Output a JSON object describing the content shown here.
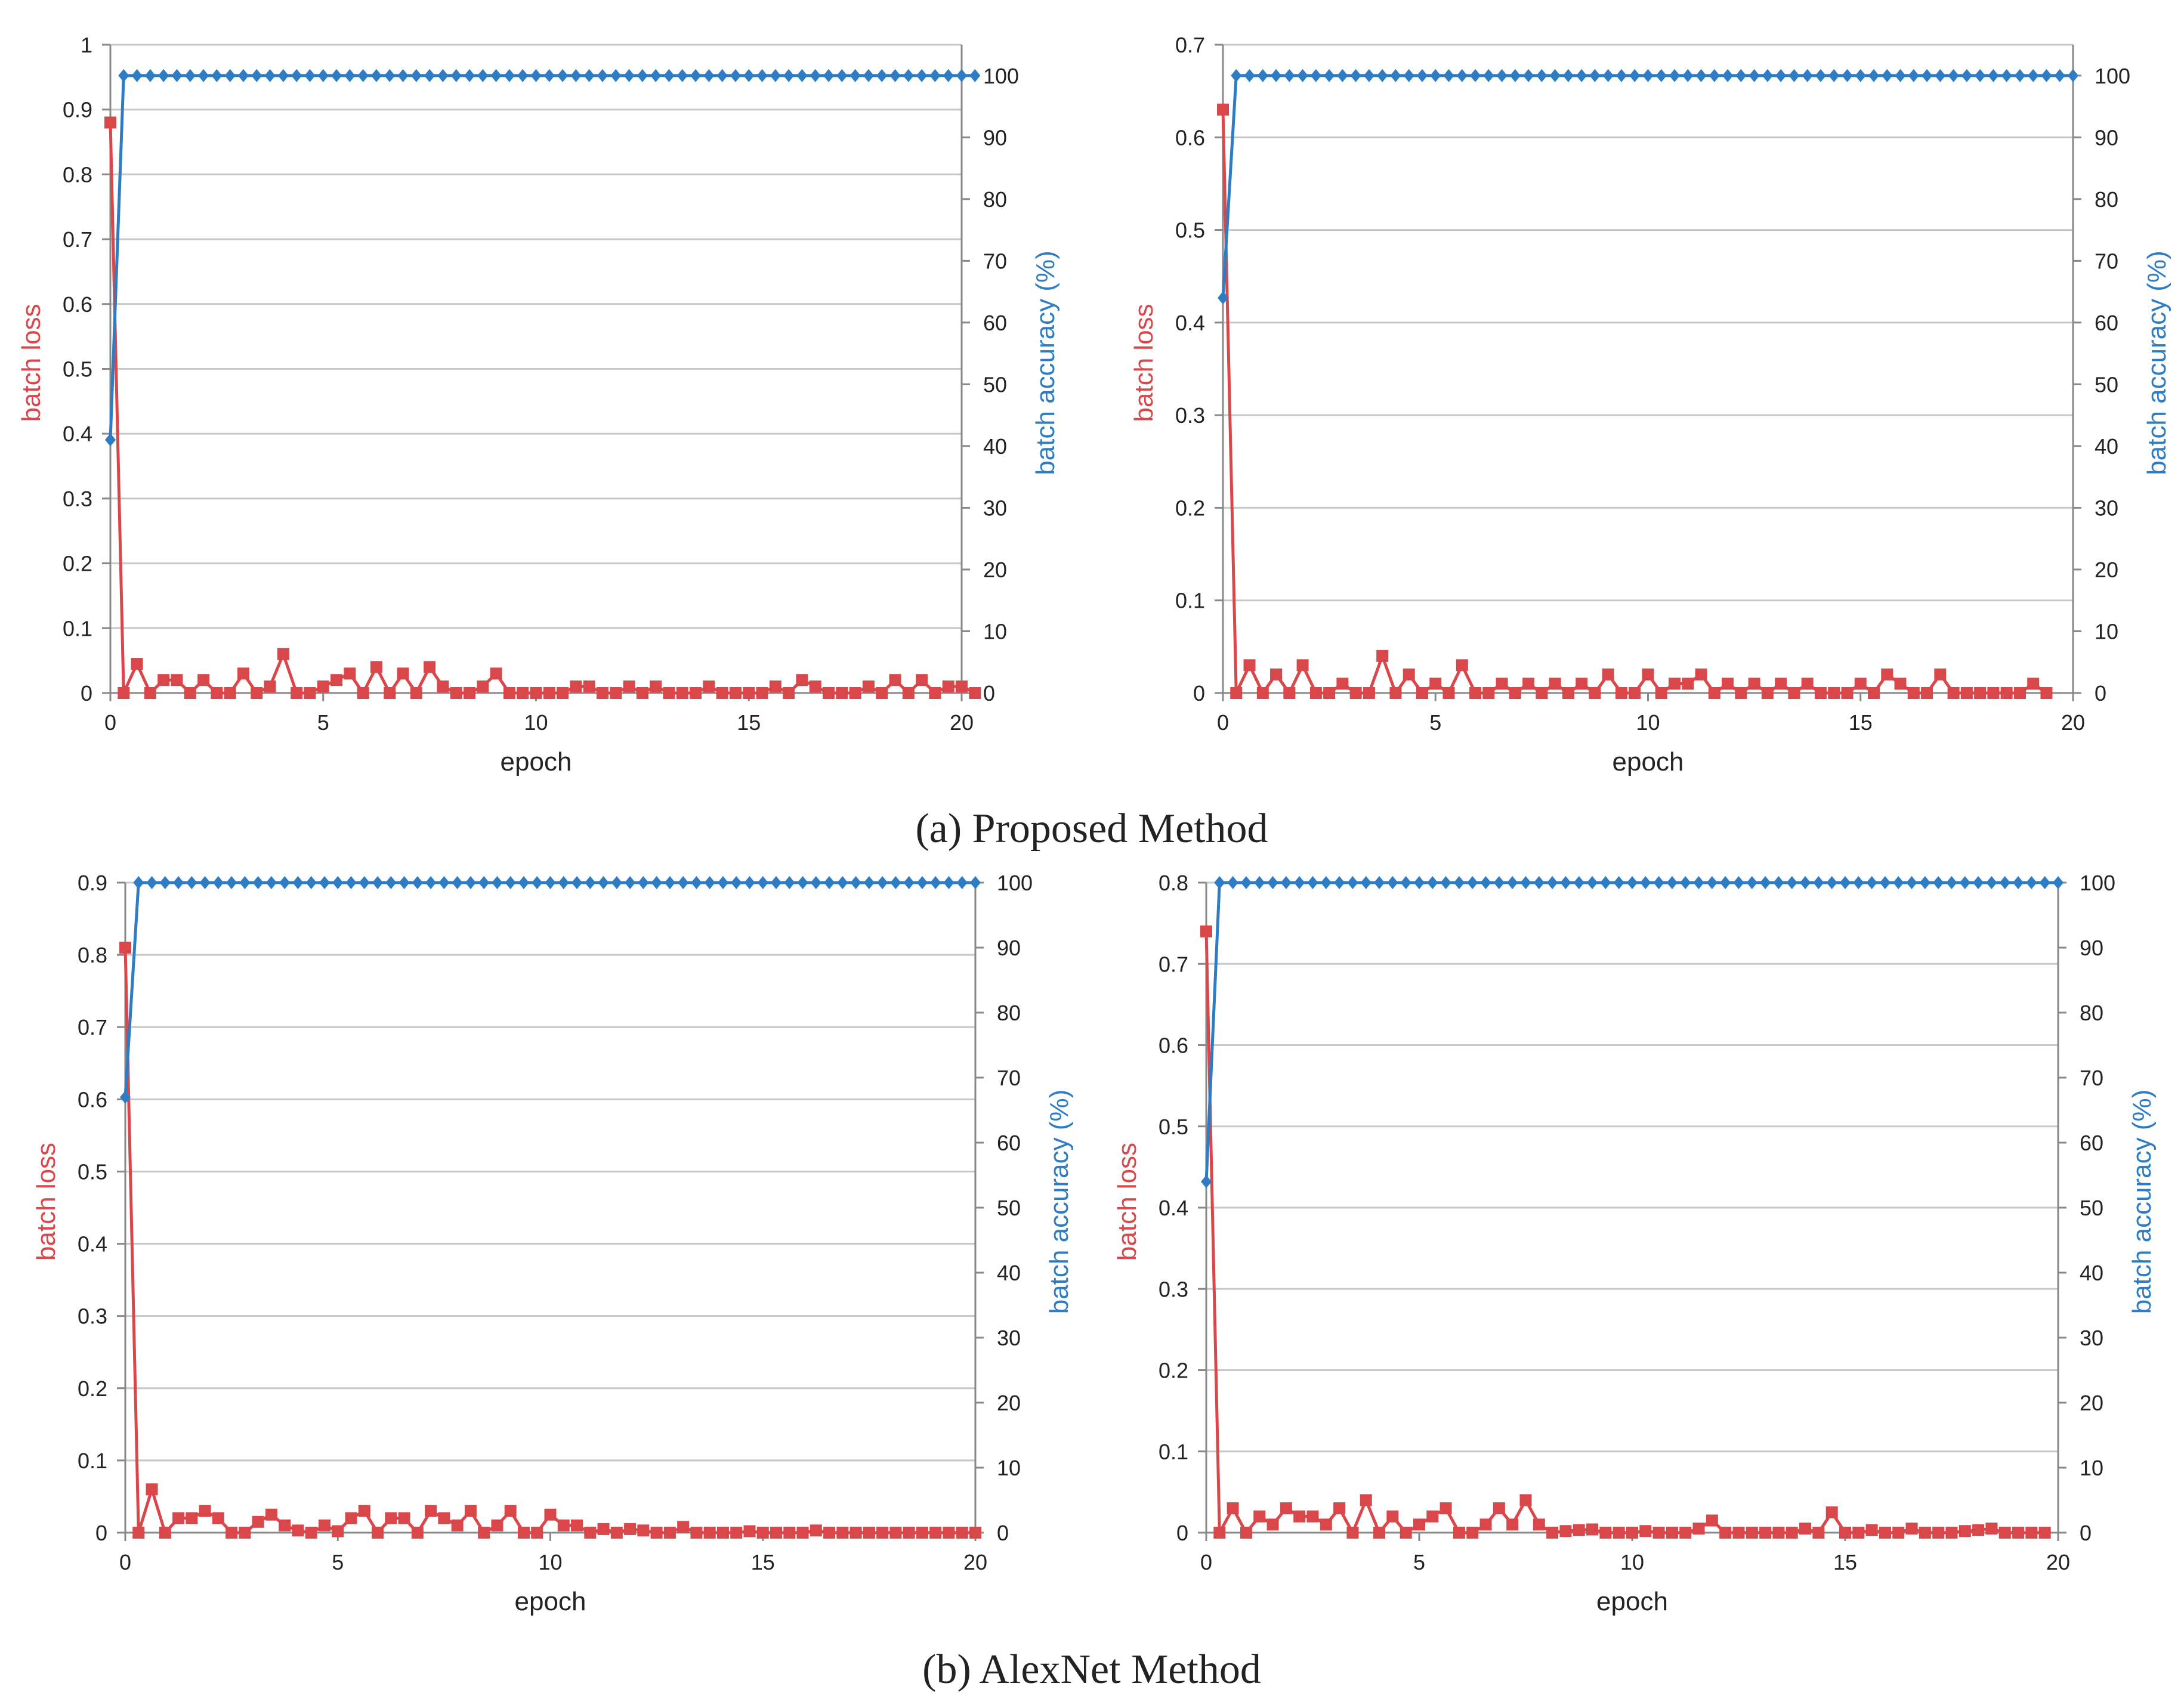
{
  "captions": [
    "(a) Proposed Method",
    "(b) AlexNet Method"
  ],
  "colors": {
    "loss": "#d9474a",
    "accuracy": "#2e7cc4",
    "grid": "#c8c8c8",
    "axis": "#888888",
    "text": "#222222"
  },
  "chart_data": [
    {
      "type": "line",
      "panel": "a-left",
      "xlabel": "epoch",
      "ylabel_left": "batch loss",
      "ylabel_right": "batch accuracy (%)",
      "xlim": [
        0,
        20
      ],
      "xticks": [
        0,
        5,
        10,
        15,
        20
      ],
      "ylim_left": [
        0,
        1
      ],
      "yticks_left": [
        0,
        0.1,
        0.2,
        0.3,
        0.4,
        0.5,
        0.6,
        0.7,
        0.8,
        0.9,
        1
      ],
      "ylim_right": [
        0,
        105
      ],
      "yticks_right": [
        0,
        10,
        20,
        30,
        40,
        50,
        60,
        70,
        80,
        90,
        100
      ],
      "series": [
        {
          "name": "batch loss",
          "axis": "left",
          "marker": "square",
          "x_step": 0.3125,
          "x_start": 0,
          "values": [
            0.88,
            0,
            0.045,
            0,
            0.02,
            0.02,
            0,
            0.02,
            0,
            0,
            0.03,
            0,
            0.01,
            0.06,
            0,
            0,
            0.01,
            0.02,
            0.03,
            0,
            0.04,
            0,
            0.03,
            0,
            0.04,
            0.01,
            0,
            0,
            0.01,
            0.03,
            0,
            0,
            0,
            0,
            0,
            0.01,
            0.01,
            0,
            0,
            0.01,
            0,
            0.01,
            0,
            0,
            0,
            0.01,
            0,
            0,
            0,
            0,
            0.01,
            0,
            0.02,
            0.01,
            0,
            0,
            0,
            0.01,
            0,
            0.02,
            0,
            0.02,
            0,
            0.01,
            0.01,
            0
          ]
        },
        {
          "name": "batch accuracy (%)",
          "axis": "right",
          "marker": "diamond",
          "x_step": 0.3125,
          "x_start": 0,
          "values": [
            41,
            100,
            100,
            100,
            100,
            100,
            100,
            100,
            100,
            100,
            100,
            100,
            100,
            100,
            100,
            100,
            100,
            100,
            100,
            100,
            100,
            100,
            100,
            100,
            100,
            100,
            100,
            100,
            100,
            100,
            100,
            100,
            100,
            100,
            100,
            100,
            100,
            100,
            100,
            100,
            100,
            100,
            100,
            100,
            100,
            100,
            100,
            100,
            100,
            100,
            100,
            100,
            100,
            100,
            100,
            100,
            100,
            100,
            100,
            100,
            100,
            100,
            100,
            100,
            100,
            100
          ]
        }
      ]
    },
    {
      "type": "line",
      "panel": "a-right",
      "xlabel": "epoch",
      "ylabel_left": "batch loss",
      "ylabel_right": "batch accuracy (%)",
      "xlim": [
        0,
        20
      ],
      "xticks": [
        0,
        5,
        10,
        15,
        20
      ],
      "ylim_left": [
        0,
        0.7
      ],
      "yticks_left": [
        0,
        0.1,
        0.2,
        0.3,
        0.4,
        0.5,
        0.6,
        0.7
      ],
      "ylim_right": [
        0,
        105
      ],
      "yticks_right": [
        0,
        10,
        20,
        30,
        40,
        50,
        60,
        70,
        80,
        90,
        100
      ],
      "series": [
        {
          "name": "batch loss",
          "axis": "left",
          "marker": "square",
          "x_step": 0.3125,
          "x_start": 0,
          "values": [
            0.63,
            0,
            0.03,
            0,
            0.02,
            0,
            0.03,
            0,
            0,
            0.01,
            0,
            0,
            0.04,
            0,
            0.02,
            0,
            0.01,
            0,
            0.03,
            0,
            0,
            0.01,
            0,
            0.01,
            0,
            0.01,
            0,
            0.01,
            0,
            0.02,
            0,
            0,
            0.02,
            0,
            0.01,
            0.01,
            0.02,
            0,
            0.01,
            0,
            0.01,
            0,
            0.01,
            0,
            0.01,
            0,
            0,
            0,
            0.01,
            0,
            0.02,
            0.01,
            0,
            0,
            0.02,
            0,
            0,
            0,
            0,
            0,
            0,
            0.01,
            0
          ]
        },
        {
          "name": "batch accuracy (%)",
          "axis": "right",
          "marker": "diamond",
          "x_step": 0.3125,
          "x_start": 0,
          "values": [
            64,
            100,
            100,
            100,
            100,
            100,
            100,
            100,
            100,
            100,
            100,
            100,
            100,
            100,
            100,
            100,
            100,
            100,
            100,
            100,
            100,
            100,
            100,
            100,
            100,
            100,
            100,
            100,
            100,
            100,
            100,
            100,
            100,
            100,
            100,
            100,
            100,
            100,
            100,
            100,
            100,
            100,
            100,
            100,
            100,
            100,
            100,
            100,
            100,
            100,
            100,
            100,
            100,
            100,
            100,
            100,
            100,
            100,
            100,
            100,
            100,
            100,
            100,
            100,
            100
          ]
        }
      ]
    },
    {
      "type": "line",
      "panel": "b-left",
      "xlabel": "epoch",
      "ylabel_left": "batch loss",
      "ylabel_right": "batch accuracy (%)",
      "xlim": [
        0,
        20
      ],
      "xticks": [
        0,
        5,
        10,
        15,
        20
      ],
      "ylim_left": [
        0,
        0.9
      ],
      "yticks_left": [
        0,
        0.1,
        0.2,
        0.3,
        0.4,
        0.5,
        0.6,
        0.7,
        0.8,
        0.9
      ],
      "ylim_right": [
        0,
        100
      ],
      "yticks_right": [
        0,
        10,
        20,
        30,
        40,
        50,
        60,
        70,
        80,
        90,
        100
      ],
      "series": [
        {
          "name": "batch loss",
          "axis": "left",
          "marker": "square",
          "x_step": 0.3125,
          "x_start": 0,
          "values": [
            0.81,
            0,
            0.06,
            0,
            0.02,
            0.02,
            0.03,
            0.02,
            0,
            0,
            0.015,
            0.025,
            0.01,
            0.003,
            0,
            0.01,
            0.002,
            0.02,
            0.03,
            0,
            0.02,
            0.02,
            0,
            0.03,
            0.02,
            0.01,
            0.03,
            0,
            0.01,
            0.03,
            0,
            0,
            0.025,
            0.01,
            0.01,
            0,
            0.005,
            0,
            0.005,
            0.003,
            0,
            0,
            0.008,
            0,
            0,
            0,
            0,
            0.002,
            0,
            0,
            0,
            0,
            0.003,
            0,
            0,
            0,
            0,
            0,
            0,
            0,
            0,
            0,
            0,
            0,
            0
          ]
        },
        {
          "name": "batch accuracy (%)",
          "axis": "right",
          "marker": "diamond",
          "x_step": 0.3125,
          "x_start": 0,
          "values": [
            67,
            100,
            100,
            100,
            100,
            100,
            100,
            100,
            100,
            100,
            100,
            100,
            100,
            100,
            100,
            100,
            100,
            100,
            100,
            100,
            100,
            100,
            100,
            100,
            100,
            100,
            100,
            100,
            100,
            100,
            100,
            100,
            100,
            100,
            100,
            100,
            100,
            100,
            100,
            100,
            100,
            100,
            100,
            100,
            100,
            100,
            100,
            100,
            100,
            100,
            100,
            100,
            100,
            100,
            100,
            100,
            100,
            100,
            100,
            100,
            100,
            100,
            100,
            100,
            100
          ]
        }
      ]
    },
    {
      "type": "line",
      "panel": "b-right",
      "xlabel": "epoch",
      "ylabel_left": "batch loss",
      "ylabel_right": "batch accuracy (%)",
      "xlim": [
        0,
        20
      ],
      "xticks": [
        0,
        5,
        10,
        15,
        20
      ],
      "ylim_left": [
        0,
        0.8
      ],
      "yticks_left": [
        0,
        0.1,
        0.2,
        0.3,
        0.4,
        0.5,
        0.6,
        0.7,
        0.8
      ],
      "ylim_right": [
        0,
        100
      ],
      "yticks_right": [
        0,
        10,
        20,
        30,
        40,
        50,
        60,
        70,
        80,
        90,
        100
      ],
      "series": [
        {
          "name": "batch loss",
          "axis": "left",
          "marker": "square",
          "x_step": 0.3125,
          "x_start": 0,
          "values": [
            0.74,
            0,
            0.03,
            0,
            0.02,
            0.01,
            0.03,
            0.02,
            0.02,
            0.01,
            0.03,
            0,
            0.04,
            0,
            0.02,
            0,
            0.01,
            0.02,
            0.03,
            0,
            0,
            0.01,
            0.03,
            0.01,
            0.04,
            0.01,
            0,
            0.002,
            0.003,
            0.004,
            0,
            0,
            0,
            0.002,
            0,
            0,
            0,
            0.005,
            0.015,
            0,
            0,
            0,
            0,
            0,
            0,
            0.005,
            0,
            0.025,
            0,
            0,
            0.003,
            0,
            0,
            0.005,
            0,
            0,
            0,
            0.002,
            0.003,
            0.005,
            0,
            0,
            0,
            0
          ]
        },
        {
          "name": "batch accuracy (%)",
          "axis": "right",
          "marker": "diamond",
          "x_step": 0.3125,
          "x_start": 0,
          "values": [
            54,
            100,
            100,
            100,
            100,
            100,
            100,
            100,
            100,
            100,
            100,
            100,
            100,
            100,
            100,
            100,
            100,
            100,
            100,
            100,
            100,
            100,
            100,
            100,
            100,
            100,
            100,
            100,
            100,
            100,
            100,
            100,
            100,
            100,
            100,
            100,
            100,
            100,
            100,
            100,
            100,
            100,
            100,
            100,
            100,
            100,
            100,
            100,
            100,
            100,
            100,
            100,
            100,
            100,
            100,
            100,
            100,
            100,
            100,
            100,
            100,
            100,
            100,
            100,
            100
          ]
        }
      ]
    }
  ]
}
